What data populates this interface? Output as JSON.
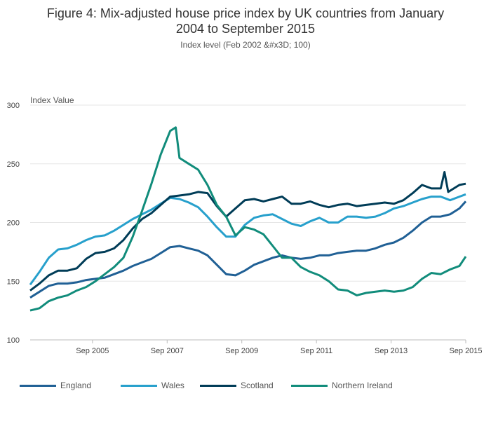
{
  "chart_data": {
    "type": "line",
    "title": "Figure 4: Mix-adjusted house price index by UK countries from January 2004 to September 2015",
    "title_line1": "Figure 4: Mix-adjusted house price index by UK countries from January",
    "title_line2": "2004 to September 2015",
    "subtitle": "Index level (Feb 2002 &#x3D; 100)",
    "ylabel": "Index Value",
    "xlabel": "",
    "ylim": [
      100,
      300
    ],
    "yticks": [
      100,
      150,
      200,
      250,
      300
    ],
    "xlim": [
      2004.0,
      2015.67
    ],
    "xticks": [
      {
        "label": "Sep 2005",
        "t": 2005.67
      },
      {
        "label": "Sep 2007",
        "t": 2007.67
      },
      {
        "label": "Sep 2009",
        "t": 2009.67
      },
      {
        "label": "Sep 2011",
        "t": 2011.67
      },
      {
        "label": "Sep 2013",
        "t": 2013.67
      },
      {
        "label": "Sep 2015",
        "t": 2015.67
      }
    ],
    "grid": true,
    "legend_position": "bottom",
    "series": [
      {
        "name": "England",
        "color": "#206095",
        "points": [
          [
            2004.0,
            136
          ],
          [
            2004.25,
            141
          ],
          [
            2004.5,
            146
          ],
          [
            2004.75,
            148
          ],
          [
            2005.0,
            148
          ],
          [
            2005.25,
            149
          ],
          [
            2005.5,
            151
          ],
          [
            2005.75,
            152
          ],
          [
            2006.0,
            153
          ],
          [
            2006.25,
            156
          ],
          [
            2006.5,
            159
          ],
          [
            2006.75,
            163
          ],
          [
            2007.0,
            166
          ],
          [
            2007.25,
            169
          ],
          [
            2007.5,
            174
          ],
          [
            2007.75,
            179
          ],
          [
            2008.0,
            180
          ],
          [
            2008.25,
            178
          ],
          [
            2008.5,
            176
          ],
          [
            2008.75,
            172
          ],
          [
            2009.0,
            164
          ],
          [
            2009.25,
            156
          ],
          [
            2009.5,
            155
          ],
          [
            2009.75,
            159
          ],
          [
            2010.0,
            164
          ],
          [
            2010.25,
            167
          ],
          [
            2010.5,
            170
          ],
          [
            2010.75,
            172
          ],
          [
            2011.0,
            170
          ],
          [
            2011.25,
            169
          ],
          [
            2011.5,
            170
          ],
          [
            2011.75,
            172
          ],
          [
            2012.0,
            172
          ],
          [
            2012.25,
            174
          ],
          [
            2012.5,
            175
          ],
          [
            2012.75,
            176
          ],
          [
            2013.0,
            176
          ],
          [
            2013.25,
            178
          ],
          [
            2013.5,
            181
          ],
          [
            2013.75,
            183
          ],
          [
            2014.0,
            187
          ],
          [
            2014.25,
            193
          ],
          [
            2014.5,
            200
          ],
          [
            2014.75,
            205
          ],
          [
            2015.0,
            205
          ],
          [
            2015.25,
            207
          ],
          [
            2015.5,
            212
          ],
          [
            2015.67,
            218
          ]
        ]
      },
      {
        "name": "Wales",
        "color": "#27a0cc",
        "points": [
          [
            2004.0,
            147
          ],
          [
            2004.25,
            158
          ],
          [
            2004.5,
            170
          ],
          [
            2004.75,
            177
          ],
          [
            2005.0,
            178
          ],
          [
            2005.25,
            181
          ],
          [
            2005.5,
            185
          ],
          [
            2005.75,
            188
          ],
          [
            2006.0,
            189
          ],
          [
            2006.25,
            193
          ],
          [
            2006.5,
            198
          ],
          [
            2006.75,
            203
          ],
          [
            2007.0,
            207
          ],
          [
            2007.25,
            211
          ],
          [
            2007.5,
            216
          ],
          [
            2007.75,
            221
          ],
          [
            2008.0,
            220
          ],
          [
            2008.25,
            217
          ],
          [
            2008.5,
            213
          ],
          [
            2008.75,
            205
          ],
          [
            2009.0,
            196
          ],
          [
            2009.25,
            188
          ],
          [
            2009.5,
            188
          ],
          [
            2009.75,
            198
          ],
          [
            2010.0,
            204
          ],
          [
            2010.25,
            206
          ],
          [
            2010.5,
            207
          ],
          [
            2010.75,
            203
          ],
          [
            2011.0,
            199
          ],
          [
            2011.25,
            197
          ],
          [
            2011.5,
            201
          ],
          [
            2011.75,
            204
          ],
          [
            2012.0,
            200
          ],
          [
            2012.25,
            200
          ],
          [
            2012.5,
            205
          ],
          [
            2012.75,
            205
          ],
          [
            2013.0,
            204
          ],
          [
            2013.25,
            205
          ],
          [
            2013.5,
            208
          ],
          [
            2013.75,
            212
          ],
          [
            2014.0,
            214
          ],
          [
            2014.25,
            217
          ],
          [
            2014.5,
            220
          ],
          [
            2014.75,
            222
          ],
          [
            2015.0,
            222
          ],
          [
            2015.25,
            219
          ],
          [
            2015.5,
            222
          ],
          [
            2015.67,
            224
          ]
        ]
      },
      {
        "name": "Scotland",
        "color": "#003c57",
        "points": [
          [
            2004.0,
            142
          ],
          [
            2004.25,
            148
          ],
          [
            2004.5,
            155
          ],
          [
            2004.75,
            159
          ],
          [
            2005.0,
            159
          ],
          [
            2005.25,
            161
          ],
          [
            2005.5,
            169
          ],
          [
            2005.75,
            174
          ],
          [
            2006.0,
            175
          ],
          [
            2006.25,
            178
          ],
          [
            2006.5,
            185
          ],
          [
            2006.75,
            195
          ],
          [
            2007.0,
            203
          ],
          [
            2007.25,
            208
          ],
          [
            2007.5,
            215
          ],
          [
            2007.75,
            222
          ],
          [
            2008.0,
            223
          ],
          [
            2008.25,
            224
          ],
          [
            2008.5,
            226
          ],
          [
            2008.75,
            225
          ],
          [
            2009.0,
            214
          ],
          [
            2009.25,
            205
          ],
          [
            2009.5,
            212
          ],
          [
            2009.75,
            219
          ],
          [
            2010.0,
            220
          ],
          [
            2010.25,
            218
          ],
          [
            2010.5,
            220
          ],
          [
            2010.75,
            222
          ],
          [
            2011.0,
            216
          ],
          [
            2011.25,
            216
          ],
          [
            2011.5,
            218
          ],
          [
            2011.75,
            215
          ],
          [
            2012.0,
            213
          ],
          [
            2012.25,
            215
          ],
          [
            2012.5,
            216
          ],
          [
            2012.75,
            214
          ],
          [
            2013.0,
            215
          ],
          [
            2013.25,
            216
          ],
          [
            2013.5,
            217
          ],
          [
            2013.75,
            216
          ],
          [
            2014.0,
            219
          ],
          [
            2014.25,
            225
          ],
          [
            2014.5,
            232
          ],
          [
            2014.75,
            229
          ],
          [
            2015.0,
            229
          ],
          [
            2015.1,
            243
          ],
          [
            2015.2,
            226
          ],
          [
            2015.5,
            232
          ],
          [
            2015.67,
            233
          ]
        ]
      },
      {
        "name": "Northern Ireland",
        "color": "#118c7b",
        "points": [
          [
            2004.0,
            125
          ],
          [
            2004.25,
            127
          ],
          [
            2004.5,
            133
          ],
          [
            2004.75,
            136
          ],
          [
            2005.0,
            138
          ],
          [
            2005.25,
            142
          ],
          [
            2005.5,
            145
          ],
          [
            2005.75,
            150
          ],
          [
            2006.0,
            156
          ],
          [
            2006.25,
            162
          ],
          [
            2006.5,
            170
          ],
          [
            2006.75,
            188
          ],
          [
            2007.0,
            210
          ],
          [
            2007.25,
            233
          ],
          [
            2007.5,
            258
          ],
          [
            2007.75,
            278
          ],
          [
            2007.9,
            281
          ],
          [
            2008.0,
            255
          ],
          [
            2008.25,
            250
          ],
          [
            2008.5,
            245
          ],
          [
            2008.75,
            232
          ],
          [
            2009.0,
            215
          ],
          [
            2009.25,
            205
          ],
          [
            2009.5,
            189
          ],
          [
            2009.75,
            196
          ],
          [
            2010.0,
            194
          ],
          [
            2010.25,
            190
          ],
          [
            2010.5,
            180
          ],
          [
            2010.75,
            170
          ],
          [
            2011.0,
            170
          ],
          [
            2011.25,
            162
          ],
          [
            2011.5,
            158
          ],
          [
            2011.75,
            155
          ],
          [
            2012.0,
            150
          ],
          [
            2012.25,
            143
          ],
          [
            2012.5,
            142
          ],
          [
            2012.75,
            138
          ],
          [
            2013.0,
            140
          ],
          [
            2013.25,
            141
          ],
          [
            2013.5,
            142
          ],
          [
            2013.75,
            141
          ],
          [
            2014.0,
            142
          ],
          [
            2014.25,
            145
          ],
          [
            2014.5,
            152
          ],
          [
            2014.75,
            157
          ],
          [
            2015.0,
            156
          ],
          [
            2015.25,
            160
          ],
          [
            2015.5,
            163
          ],
          [
            2015.67,
            171
          ]
        ]
      }
    ]
  }
}
